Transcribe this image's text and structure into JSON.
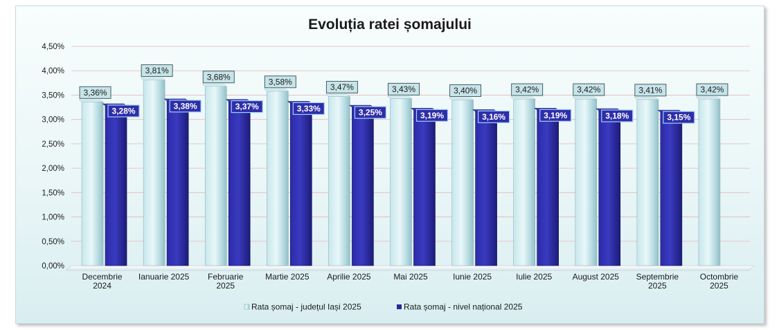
{
  "chart_data": {
    "type": "bar",
    "title": "Evoluția ratei șomajului",
    "categories": [
      [
        "Decembrie",
        "2024"
      ],
      [
        "Ianuarie 2025"
      ],
      [
        "Februarie",
        "2025"
      ],
      [
        "Martie 2025"
      ],
      [
        "Aprilie 2025"
      ],
      [
        "Mai 2025"
      ],
      [
        "Iunie 2025"
      ],
      [
        "Iulie 2025"
      ],
      [
        "August 2025"
      ],
      [
        "Septembrie",
        "2025"
      ],
      [
        "Octombrie",
        "2025"
      ]
    ],
    "series": [
      {
        "name": "Rata șomaj - județul Iași 2025",
        "values": [
          3.36,
          3.81,
          3.68,
          3.58,
          3.47,
          3.43,
          3.4,
          3.42,
          3.42,
          3.41,
          3.42
        ],
        "labels": [
          "3,36%",
          "3,81%",
          "3,68%",
          "3,58%",
          "3,47%",
          "3,43%",
          "3,40%",
          "3,42%",
          "3,42%",
          "3,41%",
          "3,42%"
        ],
        "color": "#bfe3e8"
      },
      {
        "name": "Rata șomaj - nivel național 2025",
        "values": [
          3.28,
          3.38,
          3.37,
          3.33,
          3.25,
          3.19,
          3.16,
          3.19,
          3.18,
          3.15,
          null
        ],
        "labels": [
          "3,28%",
          "3,38%",
          "3,37%",
          "3,33%",
          "3,25%",
          "3,19%",
          "3,16%",
          "3,19%",
          "3,18%",
          "3,15%",
          null
        ],
        "color": "#2a2a96"
      }
    ],
    "ylim": [
      0,
      4.5
    ],
    "yticks": [
      0,
      0.5,
      1.0,
      1.5,
      2.0,
      2.5,
      3.0,
      3.5,
      4.0,
      4.5
    ],
    "ytick_labels": [
      "0,00%",
      "0,50%",
      "1,00%",
      "1,50%",
      "2,00%",
      "2,50%",
      "3,00%",
      "3,50%",
      "4,00%",
      "4,50%"
    ],
    "xlabel": "",
    "ylabel": "",
    "grid": true,
    "legend_position": "bottom"
  }
}
